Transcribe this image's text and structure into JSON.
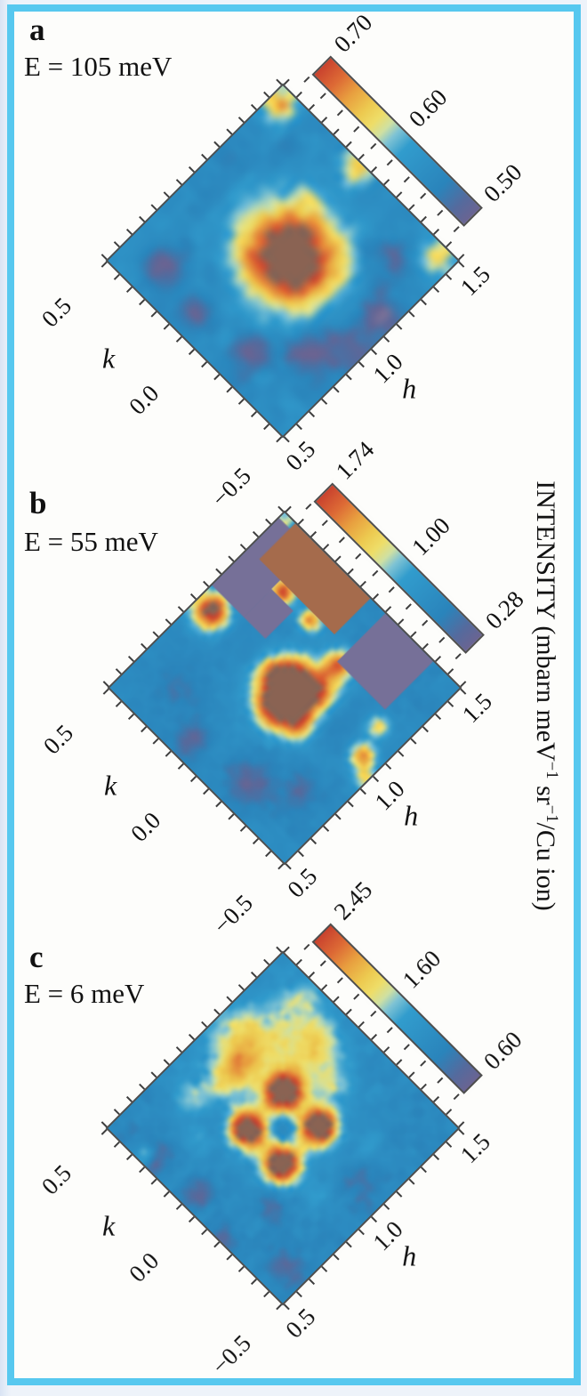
{
  "figure": {
    "border_color": "#57c8ef",
    "background": "#fdfdfb",
    "side_label": {
      "text": "INTENSITY (mbarn meV−1 sr−1/Cu ion)",
      "segments": [
        {
          "text": "INTENSITY (mbarn meV"
        },
        {
          "text": "−1",
          "sup": true
        },
        {
          "text": " sr"
        },
        {
          "text": "−1",
          "sup": true
        },
        {
          "text": "/Cu ion)"
        }
      ]
    }
  },
  "colors": {
    "plot_frame": "#4e4e4e",
    "tick": "#3e3e3e",
    "over": "#8a6353",
    "under": "#767098",
    "mask_purple": "#767098",
    "mask_brown": "#a56b4c",
    "colormap": [
      [
        0.0,
        "#6a6492"
      ],
      [
        0.08,
        "#556a9d"
      ],
      [
        0.2,
        "#2a84bb"
      ],
      [
        0.45,
        "#319ccd"
      ],
      [
        0.53,
        "#7fc3d4"
      ],
      [
        0.58,
        "#cfe0a2"
      ],
      [
        0.64,
        "#eedd68"
      ],
      [
        0.71,
        "#edca50"
      ],
      [
        0.81,
        "#e89f3f"
      ],
      [
        0.9,
        "#dd6a35"
      ],
      [
        1.0,
        "#c9422e"
      ]
    ]
  },
  "chart_data": {
    "type": "heatmap",
    "panels": [
      {
        "letter": "a",
        "energy_label": "E = 105 meV",
        "axes": {
          "h": {
            "label": "h",
            "range": [
              0.5,
              1.5
            ],
            "ticks": [
              "0.5",
              "1.0",
              "1.5"
            ],
            "values": [
              0.5,
              1.0,
              1.5
            ]
          },
          "k": {
            "label": "k",
            "range": [
              -0.5,
              0.5
            ],
            "ticks": [
              "0.5",
              "0.0",
              "−0.5"
            ],
            "values": [
              0.5,
              0.0,
              -0.5
            ]
          }
        },
        "colorbar": {
          "vmin": 0.5,
          "vmax": 0.7,
          "tick_labels": [
            {
              "label": "0.70",
              "value": 0.7
            },
            {
              "label": "0.60",
              "value": 0.6
            },
            {
              "label": "0.50",
              "value": 0.5
            }
          ]
        },
        "field": {
          "grid": 27,
          "base": 0.556,
          "noise": 0.025,
          "blobs": [
            [
              1.03,
              -0.01,
              0.145,
              0.195
            ],
            [
              1.44,
              0.45,
              0.045,
              0.11
            ],
            [
              1.48,
              0.06,
              0.055,
              0.09
            ],
            [
              1.45,
              -0.43,
              0.05,
              0.09
            ],
            [
              1.22,
              0.12,
              0.05,
              0.035
            ],
            [
              0.63,
              0.33,
              0.055,
              -0.06
            ],
            [
              0.6,
              0.1,
              0.05,
              -0.055
            ],
            [
              0.66,
              -0.18,
              0.05,
              -0.05
            ],
            [
              0.92,
              -0.43,
              0.08,
              -0.06
            ],
            [
              1.12,
              -0.44,
              0.06,
              -0.06
            ],
            [
              0.8,
              -0.32,
              0.05,
              -0.05
            ],
            [
              1.33,
              -0.33,
              0.05,
              -0.045
            ],
            [
              1.28,
              -0.23,
              0.05,
              -0.03
            ]
          ],
          "masks": []
        }
      },
      {
        "letter": "b",
        "energy_label": "E = 55 meV",
        "axes": {
          "h": {
            "label": "h",
            "range": [
              0.5,
              1.5
            ],
            "ticks": [
              "0.5",
              "1.0",
              "1.5"
            ],
            "values": [
              0.5,
              1.0,
              1.5
            ]
          },
          "k": {
            "label": "k",
            "range": [
              -0.5,
              0.5
            ],
            "ticks": [
              "0.5",
              "0.0",
              "−0.5"
            ],
            "values": [
              0.5,
              0.0,
              -0.5
            ]
          }
        },
        "colorbar": {
          "vmin": 0.28,
          "vmax": 1.74,
          "tick_labels": [
            {
              "label": "1.74",
              "value": 1.74
            },
            {
              "label": "1.00",
              "value": 1.0
            },
            {
              "label": "0.28",
              "value": 0.28
            }
          ]
        },
        "field": {
          "grid": 44,
          "base": 0.66,
          "noise": 0.1,
          "blobs": [
            [
              1.0,
              -0.045,
              0.095,
              1.65
            ],
            [
              0.895,
              -0.02,
              0.05,
              0.42
            ],
            [
              1.1,
              -0.1,
              0.045,
              0.38
            ],
            [
              1.005,
              0.075,
              0.05,
              0.42
            ],
            [
              0.93,
              -0.145,
              0.045,
              0.32
            ],
            [
              1.078,
              0.02,
              0.045,
              0.32
            ],
            [
              1.01,
              0.43,
              0.055,
              1.25
            ],
            [
              1.47,
              0.47,
              0.03,
              0.55
            ],
            [
              1.27,
              0.28,
              0.04,
              1.1
            ],
            [
              1.27,
              0.12,
              0.035,
              0.85
            ],
            [
              1.22,
              -0.09,
              0.045,
              0.9
            ],
            [
              1.03,
              -0.42,
              0.04,
              0.85
            ],
            [
              1.16,
              -0.38,
              0.035,
              0.6
            ],
            [
              0.97,
              -0.49,
              0.035,
              0.5
            ],
            [
              0.62,
              -0.18,
              0.07,
              -0.28
            ],
            [
              0.75,
              -0.33,
              0.05,
              -0.22
            ],
            [
              1.02,
              -0.23,
              0.06,
              -0.22
            ],
            [
              0.58,
              0.12,
              0.05,
              -0.3
            ],
            [
              0.7,
              0.3,
              0.06,
              -0.18
            ]
          ],
          "masks": [
            {
              "h": [
                1.085,
                1.47
              ],
              "k": [
                0.32,
                0.5
              ],
              "color": "purple"
            },
            {
              "h": [
                1.085,
                1.245
              ],
              "k": [
                0.195,
                0.32
              ],
              "color": "purple"
            },
            {
              "h": [
                1.295,
                1.5
              ],
              "k": [
                0.01,
                0.44
              ],
              "color": "brown"
            },
            {
              "h": [
                1.225,
                1.5
              ],
              "k": [
                -0.35,
                -0.075
              ],
              "color": "purple"
            }
          ]
        }
      },
      {
        "letter": "c",
        "energy_label": "E = 6 meV",
        "axes": {
          "h": {
            "label": "h",
            "range": [
              0.5,
              1.5
            ],
            "ticks": [
              "0.5",
              "1.0",
              "1.5"
            ],
            "values": [
              0.5,
              1.0,
              1.5
            ]
          },
          "k": {
            "label": "k",
            "range": [
              -0.5,
              0.5
            ],
            "ticks": [
              "0.5",
              "0.0",
              "−0.5"
            ],
            "values": [
              0.5,
              0.0,
              -0.5
            ]
          }
        },
        "colorbar": {
          "vmin": 0.6,
          "vmax": 2.45,
          "tick_labels": [
            {
              "label": "2.45",
              "value": 2.45
            },
            {
              "label": "1.60",
              "value": 1.6
            },
            {
              "label": "0.60",
              "value": 0.6
            }
          ]
        },
        "field": {
          "grid": 44,
          "base": 1.08,
          "noise": 0.17,
          "blobs": [
            [
              0.89,
              0.1,
              0.05,
              1.75
            ],
            [
              1.11,
              0.1,
              0.05,
              1.75
            ],
            [
              0.89,
              -0.1,
              0.05,
              1.75
            ],
            [
              1.11,
              -0.1,
              0.05,
              1.75
            ],
            [
              1.0,
              0.0,
              0.13,
              0.5
            ],
            [
              1.0,
              0.0,
              0.045,
              -0.55
            ],
            [
              1.22,
              0.25,
              0.15,
              0.55
            ],
            [
              1.1,
              0.38,
              0.1,
              0.5
            ],
            [
              1.33,
              0.12,
              0.08,
              0.45
            ],
            [
              1.28,
              -0.04,
              0.06,
              0.35
            ],
            [
              1.42,
              0.3,
              0.06,
              0.4
            ],
            [
              0.83,
              0.35,
              0.06,
              0.45
            ],
            [
              0.95,
              0.3,
              0.05,
              0.4
            ],
            [
              0.72,
              0.22,
              0.04,
              0.3
            ],
            [
              1.05,
              0.3,
              0.05,
              0.45
            ],
            [
              0.53,
              0.32,
              0.025,
              0.8
            ],
            [
              0.9,
              -0.3,
              0.04,
              0.25
            ],
            [
              1.2,
              -0.3,
              0.04,
              0.3
            ],
            [
              0.55,
              0.28,
              0.04,
              -0.45
            ],
            [
              0.57,
              0.05,
              0.04,
              -0.4
            ],
            [
              0.62,
              -0.4,
              0.05,
              -0.38
            ],
            [
              1.07,
              -0.38,
              0.05,
              -0.3
            ],
            [
              0.52,
              -0.15,
              0.03,
              -0.38
            ],
            [
              0.75,
              -0.2,
              0.05,
              -0.25
            ]
          ],
          "masks": []
        }
      }
    ]
  }
}
